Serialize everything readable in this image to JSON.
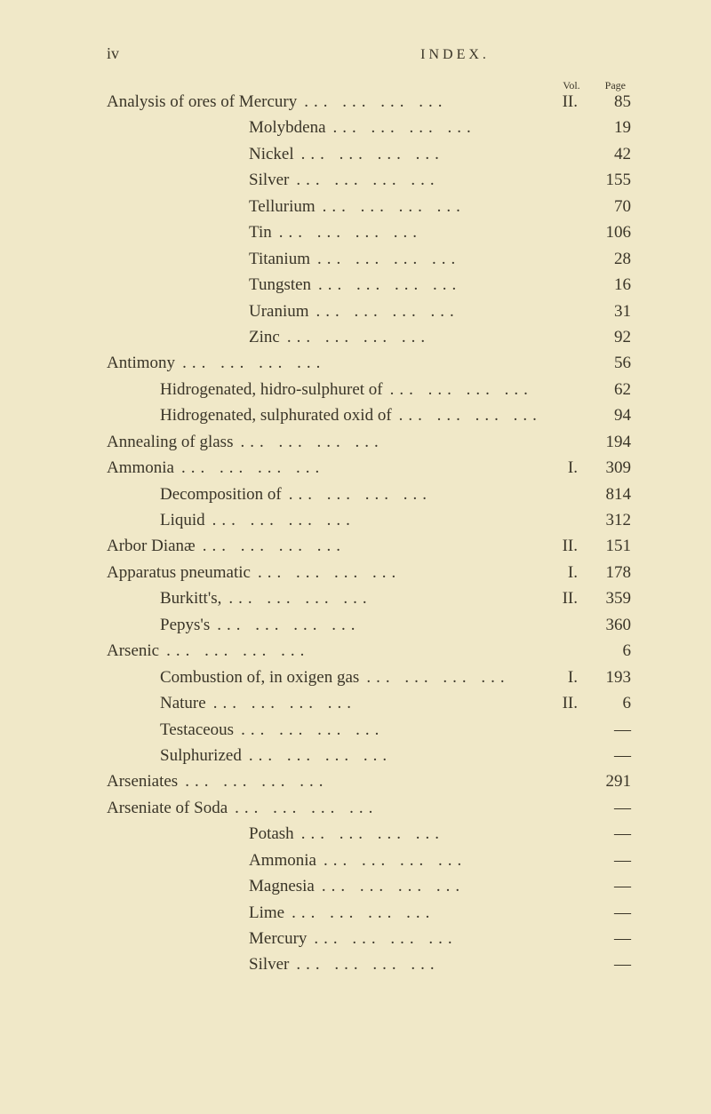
{
  "pageNumber": "iv",
  "indexTitle": "INDEX.",
  "columnHeaders": {
    "vol": "Vol.",
    "page": "Page"
  },
  "entries": [
    {
      "label": "Analysis of ores of Mercury",
      "indent": "indent-0",
      "vol": "II.",
      "page": "85"
    },
    {
      "label": "Molybdena",
      "indent": "indent-1",
      "vol": "",
      "page": "19"
    },
    {
      "label": "Nickel",
      "indent": "indent-1",
      "vol": "",
      "page": "42"
    },
    {
      "label": "Silver",
      "indent": "indent-1",
      "vol": "",
      "page": "155"
    },
    {
      "label": "Tellurium",
      "indent": "indent-1",
      "vol": "",
      "page": "70"
    },
    {
      "label": "Tin",
      "indent": "indent-1",
      "vol": "",
      "page": "106"
    },
    {
      "label": "Titanium",
      "indent": "indent-1",
      "vol": "",
      "page": "28"
    },
    {
      "label": "Tungsten",
      "indent": "indent-1",
      "vol": "",
      "page": "16"
    },
    {
      "label": "Uranium",
      "indent": "indent-1",
      "vol": "",
      "page": "31"
    },
    {
      "label": "Zinc",
      "indent": "indent-1",
      "vol": "",
      "page": "92"
    },
    {
      "label": "Antimony",
      "indent": "indent-0",
      "vol": "",
      "page": "56"
    },
    {
      "label": "Hidrogenated, hidro-sulphuret of",
      "indent": "indent-2",
      "vol": "",
      "page": "62"
    },
    {
      "label": "Hidrogenated, sulphurated oxid of",
      "indent": "indent-2",
      "vol": "",
      "page": "94"
    },
    {
      "label": "Annealing of glass",
      "indent": "indent-0",
      "vol": "",
      "page": "194"
    },
    {
      "label": "Ammonia",
      "indent": "indent-0",
      "vol": "I.",
      "page": "309"
    },
    {
      "label": "Decomposition of",
      "indent": "indent-2",
      "vol": "",
      "page": "814"
    },
    {
      "label": "Liquid",
      "indent": "indent-2",
      "vol": "",
      "page": "312"
    },
    {
      "label": "Arbor Dianæ",
      "indent": "indent-0",
      "vol": "II.",
      "page": "151"
    },
    {
      "label": "Apparatus pneumatic",
      "indent": "indent-0",
      "vol": "I.",
      "page": "178"
    },
    {
      "label": "Burkitt's,",
      "indent": "indent-2",
      "vol": "II.",
      "page": "359"
    },
    {
      "label": "Pepys's",
      "indent": "indent-2",
      "vol": "",
      "page": "360"
    },
    {
      "label": "Arsenic",
      "indent": "indent-0",
      "vol": "",
      "page": "6"
    },
    {
      "label": "Combustion of, in oxigen gas",
      "indent": "indent-2",
      "vol": "I.",
      "page": "193"
    },
    {
      "label": "Nature",
      "indent": "indent-2",
      "vol": "II.",
      "page": "6"
    },
    {
      "label": "Testaceous",
      "indent": "indent-2",
      "vol": "",
      "page": "—"
    },
    {
      "label": "Sulphurized",
      "indent": "indent-2",
      "vol": "",
      "page": "—"
    },
    {
      "label": "Arseniates",
      "indent": "indent-0",
      "vol": "",
      "page": "291"
    },
    {
      "label": "Arseniate of Soda",
      "indent": "indent-0",
      "vol": "",
      "page": "—"
    },
    {
      "label": "Potash",
      "indent": "indent-1",
      "vol": "",
      "page": "—"
    },
    {
      "label": "Ammonia",
      "indent": "indent-1",
      "vol": "",
      "page": "—"
    },
    {
      "label": "Magnesia",
      "indent": "indent-1",
      "vol": "",
      "page": "—"
    },
    {
      "label": "Lime",
      "indent": "indent-1",
      "vol": "",
      "page": "—"
    },
    {
      "label": "Mercury",
      "indent": "indent-1",
      "vol": "",
      "page": "—"
    },
    {
      "label": "Silver",
      "indent": "indent-1",
      "vol": "",
      "page": "—"
    }
  ]
}
